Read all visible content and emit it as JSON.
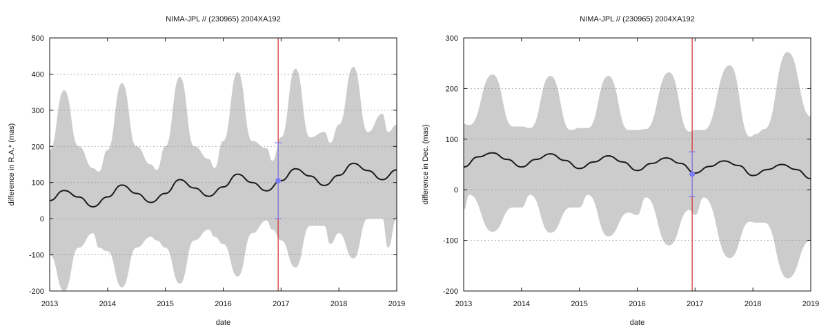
{
  "chart_data": [
    {
      "type": "line",
      "title": "NIMA-JPL // (230965) 2004XA192",
      "xlabel": "date",
      "ylabel": "difference in R.A.* (mas)",
      "xlim": [
        2013,
        2019
      ],
      "ylim": [
        -200,
        500
      ],
      "x_ticks": [
        "2013",
        "2014",
        "2015",
        "2016",
        "2017",
        "2018",
        "2019"
      ],
      "y_ticks": [
        -200,
        -100,
        0,
        100,
        200,
        300,
        400,
        500
      ],
      "grid": "horizontal dotted",
      "colors": {
        "band": "#cccccc",
        "curve": "#1a1a1a",
        "vline": "#d62728",
        "obs": "#7b7bf5"
      },
      "band": {
        "x": [
          2013.0,
          2013.25,
          2013.5,
          2013.75,
          2013.85,
          2014.0,
          2014.25,
          2014.5,
          2014.75,
          2014.85,
          2015.0,
          2015.25,
          2015.5,
          2015.75,
          2015.85,
          2016.0,
          2016.25,
          2016.5,
          2016.75,
          2016.85,
          2017.0,
          2017.25,
          2017.5,
          2017.75,
          2017.85,
          2018.0,
          2018.25,
          2018.5,
          2018.75,
          2018.85,
          2019.0
        ],
        "upper": [
          190,
          355,
          200,
          140,
          130,
          190,
          375,
          200,
          150,
          135,
          200,
          392,
          200,
          165,
          140,
          215,
          405,
          215,
          195,
          160,
          225,
          415,
          225,
          240,
          210,
          260,
          420,
          240,
          290,
          240,
          260
        ],
        "lower": [
          -100,
          -200,
          -80,
          -40,
          -80,
          -90,
          -190,
          -80,
          -50,
          -60,
          -80,
          -180,
          -60,
          -30,
          -50,
          -70,
          -160,
          -40,
          -5,
          -30,
          -60,
          -135,
          -20,
          -20,
          -70,
          -40,
          -110,
          0,
          0,
          -80,
          0
        ]
      },
      "series": [
        {
          "x": [
            2013.0,
            2013.25,
            2013.5,
            2013.75,
            2014.0,
            2014.25,
            2014.5,
            2014.75,
            2015.0,
            2015.25,
            2015.5,
            2015.75,
            2016.0,
            2016.25,
            2016.5,
            2016.75,
            2017.0,
            2017.25,
            2017.5,
            2017.75,
            2018.0,
            2018.25,
            2018.5,
            2018.75,
            2019.0
          ],
          "values": [
            50,
            78,
            60,
            33,
            60,
            93,
            70,
            45,
            70,
            108,
            85,
            62,
            88,
            123,
            100,
            77,
            105,
            138,
            118,
            92,
            120,
            153,
            133,
            108,
            135
          ]
        }
      ],
      "vline_x": 2016.95,
      "observation": {
        "x": 2016.95,
        "y": 105,
        "err_low": 0,
        "err_high": 210
      }
    },
    {
      "type": "line",
      "title": "NIMA-JPL // (230965) 2004XA192",
      "xlabel": "date",
      "ylabel": "difference in Dec. (mas)",
      "xlim": [
        2013,
        2019
      ],
      "ylim": [
        -200,
        300
      ],
      "x_ticks": [
        "2013",
        "2014",
        "2015",
        "2016",
        "2017",
        "2018",
        "2019"
      ],
      "y_ticks": [
        -200,
        -100,
        0,
        100,
        200,
        300
      ],
      "grid": "horizontal dotted",
      "colors": {
        "band": "#cccccc",
        "curve": "#1a1a1a",
        "vline": "#d62728",
        "obs": "#7b7bf5"
      },
      "band": {
        "x": [
          2013.0,
          2013.1,
          2013.5,
          2013.85,
          2014.0,
          2014.15,
          2014.5,
          2014.85,
          2015.0,
          2015.15,
          2015.5,
          2015.85,
          2016.0,
          2016.15,
          2016.55,
          2016.9,
          2017.0,
          2017.15,
          2017.6,
          2017.95,
          2018.05,
          2018.2,
          2018.6,
          2019.0
        ],
        "upper": [
          130,
          128,
          228,
          125,
          125,
          122,
          225,
          118,
          122,
          122,
          225,
          118,
          118,
          120,
          232,
          115,
          118,
          118,
          246,
          105,
          110,
          120,
          272,
          145
        ],
        "lower": [
          -40,
          -10,
          -83,
          -35,
          -35,
          -10,
          -85,
          -35,
          -35,
          -10,
          -92,
          -45,
          -50,
          -15,
          -110,
          -40,
          -50,
          -15,
          -135,
          -63,
          -65,
          -65,
          -175,
          -100
        ]
      },
      "series": [
        {
          "x": [
            2013.0,
            2013.25,
            2013.5,
            2013.75,
            2014.0,
            2014.25,
            2014.5,
            2014.75,
            2015.0,
            2015.25,
            2015.5,
            2015.75,
            2016.0,
            2016.25,
            2016.5,
            2016.75,
            2017.0,
            2017.25,
            2017.5,
            2017.75,
            2018.0,
            2018.25,
            2018.5,
            2018.75,
            2019.0
          ],
          "values": [
            45,
            65,
            73,
            60,
            45,
            60,
            71,
            58,
            42,
            55,
            67,
            55,
            38,
            52,
            63,
            52,
            33,
            46,
            57,
            48,
            28,
            40,
            50,
            40,
            22
          ]
        }
      ],
      "vline_x": 2016.95,
      "observation": {
        "x": 2016.95,
        "y": 31,
        "err_low": -13,
        "err_high": 75
      }
    }
  ]
}
